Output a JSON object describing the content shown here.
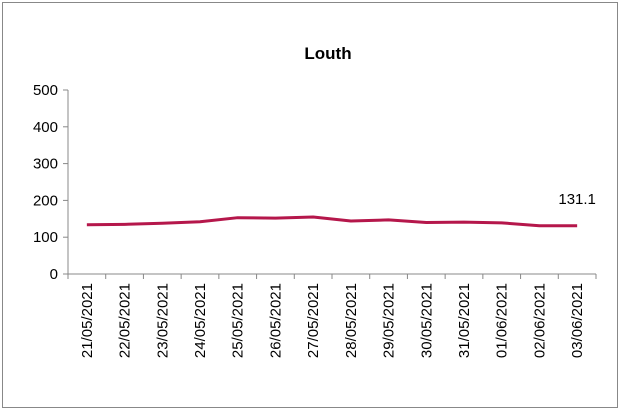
{
  "chart_data": {
    "type": "line",
    "title": "Louth",
    "categories": [
      "21/05/2021",
      "22/05/2021",
      "23/05/2021",
      "24/05/2021",
      "25/05/2021",
      "26/05/2021",
      "27/05/2021",
      "28/05/2021",
      "29/05/2021",
      "30/05/2021",
      "31/05/2021",
      "01/06/2021",
      "02/06/2021",
      "03/06/2021"
    ],
    "values": [
      134,
      135,
      138,
      142,
      153,
      152,
      155,
      144,
      147,
      140,
      141,
      139,
      131,
      131.1
    ],
    "color": "#b5174b",
    "ylim": [
      0,
      500
    ],
    "yticks": [
      0,
      100,
      200,
      300,
      400,
      500
    ],
    "grid": false
  }
}
